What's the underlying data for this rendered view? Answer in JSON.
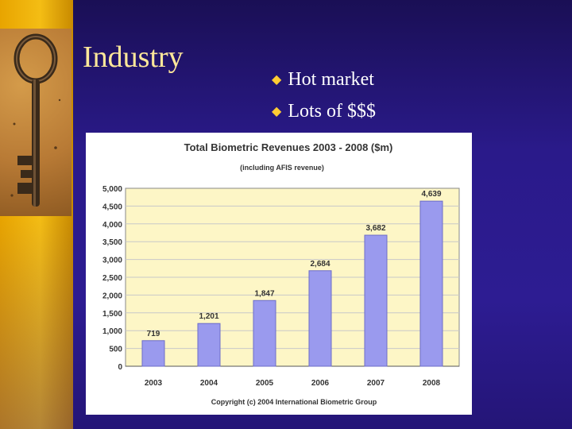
{
  "slide": {
    "title": "Industry",
    "bullets": [
      "Hot market",
      "Lots of $$$"
    ],
    "bullet_icon": "diamond-bullet-icon",
    "decor_image": "old-iron-key-photo",
    "colors": {
      "background": "#2d1c92",
      "left_band": "#f4bd14",
      "title": "#ffe89a",
      "bullet_text": "#ffffff",
      "bullet_marker": "#ffcc33"
    }
  },
  "chart_data": {
    "type": "bar",
    "title": "Total Biometric Revenues 2003 - 2008 ($m)",
    "subtitle": "(including AFIS revenue)",
    "categories": [
      "2003",
      "2004",
      "2005",
      "2006",
      "2007",
      "2008"
    ],
    "values": [
      719,
      1201,
      1847,
      2684,
      3682,
      4639
    ],
    "value_labels": [
      "719",
      "1,201",
      "1,847",
      "2,684",
      "3,682",
      "4,639"
    ],
    "ylim": [
      0,
      5000
    ],
    "yticks": [
      0,
      500,
      1000,
      1500,
      2000,
      2500,
      3000,
      3500,
      4000,
      4500,
      5000
    ],
    "ytick_labels": [
      "0",
      "500",
      "1,000",
      "1,500",
      "2,000",
      "2,500",
      "3,000",
      "3,500",
      "4,000",
      "4,500",
      "5,000"
    ],
    "grid": true,
    "footer": "Copyright (c) 2004 International Biometric Group",
    "colors": {
      "bar": "#9a9aee",
      "plot_bg": "#fdf6c6",
      "gridline": "#c8c8c8"
    }
  }
}
